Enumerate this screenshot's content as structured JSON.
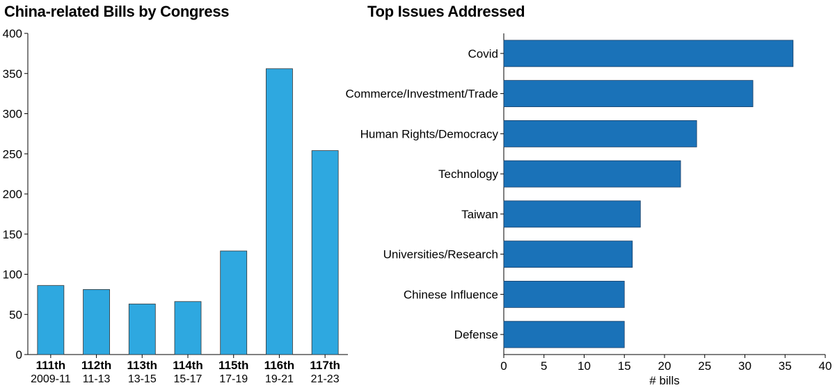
{
  "chart_data": [
    {
      "type": "bar",
      "title": "China-related Bills by Congress",
      "categories": [
        "111th",
        "112th",
        "113th",
        "114th",
        "115th",
        "116th",
        "117th"
      ],
      "sublabels": [
        "2009-11",
        "11-13",
        "13-15",
        "15-17",
        "17-19",
        "19-21",
        "21-23"
      ],
      "values": [
        86,
        81,
        63,
        66,
        129,
        356,
        254
      ],
      "ylim": [
        0,
        400
      ],
      "yticks": [
        0,
        50,
        100,
        150,
        200,
        250,
        300,
        350,
        400
      ],
      "xlabel": "",
      "ylabel": "",
      "bar_color": "#2ea8e0",
      "grid": false
    },
    {
      "type": "bar",
      "orientation": "horizontal",
      "title": "Top Issues Addressed",
      "categories": [
        "Covid",
        "Commerce/Investment/Trade",
        "Human Rights/Democracy",
        "Technology",
        "Taiwan",
        "Universities/Research",
        "Chinese Influence",
        "Defense"
      ],
      "values": [
        36,
        31,
        24,
        22,
        17,
        16,
        15,
        15
      ],
      "xlim": [
        0,
        40
      ],
      "xticks": [
        0,
        5,
        10,
        15,
        20,
        25,
        30,
        35,
        40
      ],
      "xlabel": "# bills",
      "ylabel": "",
      "bar_color": "#1a72b8",
      "grid": false
    }
  ]
}
